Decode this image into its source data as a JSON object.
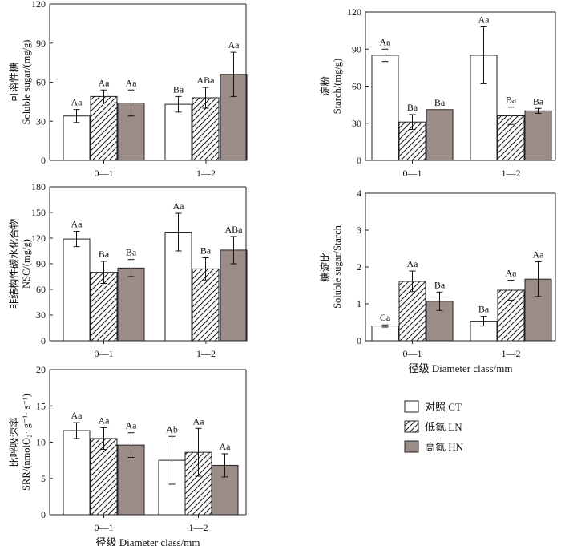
{
  "legend": {
    "items": [
      {
        "label": "对照 CT",
        "style": "blank",
        "fill": "#ffffff"
      },
      {
        "label": "低氮 LN",
        "style": "hatch",
        "fill": "#ffffff"
      },
      {
        "label": "高氮 HN",
        "style": "solid",
        "fill": "#9b8c88"
      }
    ]
  },
  "chart_data": [
    {
      "type": "bar",
      "ylabel_cn": "可溶性糖",
      "ylabel_en": "Soluble sugar/(mg/g)",
      "xlabel": "",
      "ylim": [
        0,
        120
      ],
      "yticks": [
        "0",
        "30",
        "60",
        "90",
        "120"
      ],
      "categories": [
        "0—1",
        "1—2"
      ],
      "series": [
        {
          "name": "对照 CT",
          "values": [
            34,
            43
          ],
          "errors": [
            5,
            6
          ],
          "labels": [
            "Aa",
            "Ba"
          ]
        },
        {
          "name": "低氮 LN",
          "values": [
            49,
            48
          ],
          "errors": [
            5,
            8
          ],
          "labels": [
            "Aa",
            "ABa"
          ]
        },
        {
          "name": "高氮 HN",
          "values": [
            44,
            66
          ],
          "errors": [
            10,
            17
          ],
          "labels": [
            "Aa",
            "Aa"
          ]
        }
      ]
    },
    {
      "type": "bar",
      "ylabel_cn": "淀粉",
      "ylabel_en": "Starch/(mg/g)",
      "xlabel": "",
      "ylim": [
        0,
        120
      ],
      "yticks": [
        "0",
        "30",
        "60",
        "90",
        "120"
      ],
      "categories": [
        "0—1",
        "1—2"
      ],
      "series": [
        {
          "name": "对照 CT",
          "values": [
            85,
            85
          ],
          "errors": [
            5,
            23
          ],
          "labels": [
            "Aa",
            "Aa"
          ]
        },
        {
          "name": "低氮 LN",
          "values": [
            31,
            36
          ],
          "errors": [
            6,
            7
          ],
          "labels": [
            "Ba",
            "Ba"
          ]
        },
        {
          "name": "高氮 HN",
          "values": [
            41,
            40
          ],
          "errors": [
            0,
            2
          ],
          "labels": [
            "Ba",
            "Ba"
          ]
        }
      ]
    },
    {
      "type": "bar",
      "ylabel_cn": "非结构性碳水化合物",
      "ylabel_en": "NSC/(mg/g)",
      "xlabel": "",
      "ylim": [
        0,
        180
      ],
      "yticks": [
        "0",
        "30",
        "60",
        "90",
        "120",
        "150",
        "180"
      ],
      "categories": [
        "0—1",
        "1—2"
      ],
      "series": [
        {
          "name": "对照 CT",
          "values": [
            119,
            127
          ],
          "errors": [
            9,
            22
          ],
          "labels": [
            "Aa",
            "Aa"
          ]
        },
        {
          "name": "低氮 LN",
          "values": [
            80,
            84
          ],
          "errors": [
            13,
            13
          ],
          "labels": [
            "Ba",
            "Ba"
          ]
        },
        {
          "name": "高氮 HN",
          "values": [
            85,
            106
          ],
          "errors": [
            10,
            16
          ],
          "labels": [
            "Ba",
            "ABa"
          ]
        }
      ]
    },
    {
      "type": "bar",
      "ylabel_cn": "糖淀比",
      "ylabel_en": "Soluble sugar/Starch",
      "xlabel": "径级 Diameter class/mm",
      "ylim": [
        0,
        4
      ],
      "yticks": [
        "0",
        "1",
        "2",
        "3",
        "4"
      ],
      "categories": [
        "0—1",
        "1—2"
      ],
      "series": [
        {
          "name": "对照 CT",
          "values": [
            0.4,
            0.53
          ],
          "errors": [
            0.03,
            0.13
          ],
          "labels": [
            "Ca",
            "Ba"
          ]
        },
        {
          "name": "低氮 LN",
          "values": [
            1.61,
            1.37
          ],
          "errors": [
            0.28,
            0.27
          ],
          "labels": [
            "Aa",
            "Aa"
          ]
        },
        {
          "name": "高氮 HN",
          "values": [
            1.07,
            1.67
          ],
          "errors": [
            0.25,
            0.47
          ],
          "labels": [
            "Ba",
            "Aa"
          ]
        }
      ]
    },
    {
      "type": "bar",
      "ylabel_cn": "比呼吸速率",
      "ylabel_en": "SRR/(nmolO₂· g⁻¹· s⁻¹)",
      "xlabel": "径级 Diameter class/mm",
      "ylim": [
        0,
        20
      ],
      "yticks": [
        "0",
        "5",
        "10",
        "15",
        "20"
      ],
      "categories": [
        "0—1",
        "1—2"
      ],
      "series": [
        {
          "name": "对照 CT",
          "values": [
            11.6,
            7.5
          ],
          "errors": [
            1.1,
            3.3
          ],
          "labels": [
            "Aa",
            "Ab"
          ]
        },
        {
          "name": "低氮 LN",
          "values": [
            10.5,
            8.6
          ],
          "errors": [
            1.5,
            3.3
          ],
          "labels": [
            "Aa",
            "Aa"
          ]
        },
        {
          "name": "高氮 HN",
          "values": [
            9.6,
            6.8
          ],
          "errors": [
            1.7,
            1.6
          ],
          "labels": [
            "Aa",
            "Aa"
          ]
        }
      ]
    }
  ]
}
